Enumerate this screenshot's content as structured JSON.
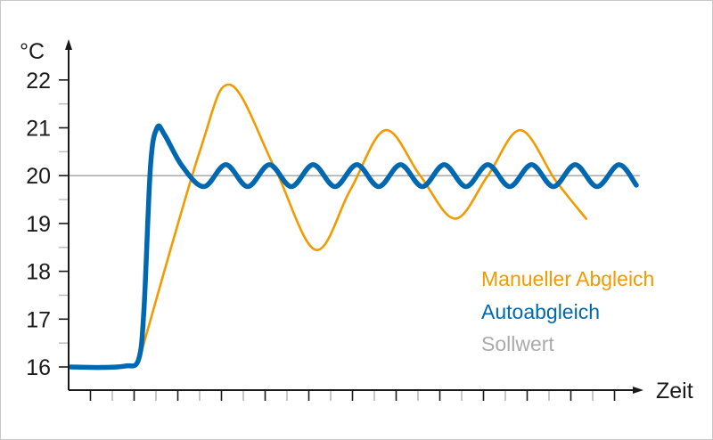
{
  "chart_data": {
    "type": "line",
    "title": "",
    "xlabel": "Zeit",
    "ylabel": "°C",
    "ylim": [
      16,
      22
    ],
    "xlim": [
      0,
      26.5
    ],
    "yticks": [
      "16",
      "17",
      "18",
      "19",
      "20",
      "21",
      "22"
    ],
    "grid": false,
    "legend_placement": "right",
    "setpoint": {
      "name": "Sollwert",
      "value": 20,
      "color": "#aaaaaa"
    },
    "series": [
      {
        "name": "Manueller Abgleich",
        "color": "#f39a00",
        "points": [
          [
            3.2,
            16.1
          ],
          [
            6.0,
            20.5
          ],
          [
            7.4,
            21.9
          ],
          [
            9.4,
            20.2
          ],
          [
            11.3,
            18.45
          ],
          [
            12.9,
            19.7
          ],
          [
            14.5,
            20.95
          ],
          [
            16.1,
            20.0
          ],
          [
            17.7,
            19.1
          ],
          [
            19.2,
            20.0
          ],
          [
            20.7,
            20.95
          ],
          [
            22.3,
            19.9
          ],
          [
            23.7,
            19.1
          ]
        ]
      },
      {
        "name": "Autoabgleich",
        "color": "#0068b0",
        "points": [
          [
            0.1,
            16.0
          ],
          [
            1.5,
            15.99
          ],
          [
            2.6,
            16.02
          ],
          [
            3.2,
            16.15
          ],
          [
            3.45,
            17.2
          ],
          [
            3.75,
            20.2
          ],
          [
            4.05,
            21.0
          ],
          [
            4.4,
            20.85
          ],
          [
            5.2,
            20.2
          ],
          [
            6.2,
            19.77
          ],
          [
            7.2,
            20.23
          ],
          [
            8.2,
            19.77
          ],
          [
            9.2,
            20.23
          ],
          [
            10.2,
            19.77
          ],
          [
            11.2,
            20.23
          ],
          [
            12.2,
            19.77
          ],
          [
            13.2,
            20.23
          ],
          [
            14.2,
            19.77
          ],
          [
            15.2,
            20.23
          ],
          [
            16.2,
            19.77
          ],
          [
            17.2,
            20.23
          ],
          [
            18.2,
            19.77
          ],
          [
            19.2,
            20.23
          ],
          [
            20.2,
            19.77
          ],
          [
            21.2,
            20.23
          ],
          [
            22.2,
            19.77
          ],
          [
            23.2,
            20.23
          ],
          [
            24.2,
            19.77
          ],
          [
            25.2,
            20.23
          ],
          [
            26.0,
            19.8
          ]
        ]
      }
    ]
  }
}
